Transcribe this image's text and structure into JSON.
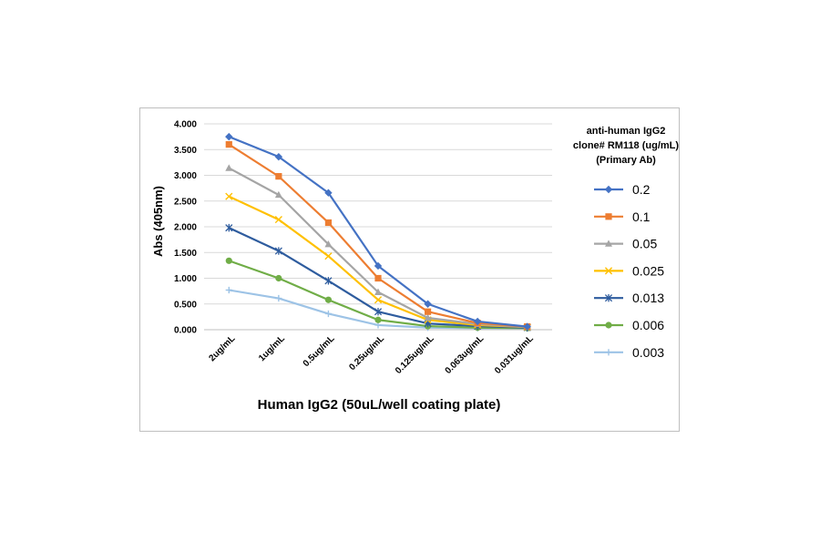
{
  "chart_data": {
    "type": "line",
    "title": "",
    "xlabel": "Human IgG2 (50uL/well coating plate)",
    "ylabel": "Abs (405nm)",
    "categories": [
      "2ug/mL",
      "1ug/mL",
      "0.5ug/mL",
      "0.25ug/mL",
      "0.125ug/mL",
      "0.063ug/mL",
      "0.031ug/mL"
    ],
    "ylim": [
      0,
      4
    ],
    "yticks": [
      "0.000",
      "0.500",
      "1.000",
      "1.500",
      "2.000",
      "2.500",
      "3.000",
      "3.500",
      "4.000"
    ],
    "grid": true,
    "legend_title_lines": [
      "anti-human IgG2",
      "clone# RM118 (ug/mL)",
      "(Primary Ab)"
    ],
    "legend_position": "right",
    "series": [
      {
        "name": "0.2",
        "color": "#4472C4",
        "marker": "diamond",
        "values": [
          3.75,
          3.36,
          2.66,
          1.24,
          0.5,
          0.16,
          0.06
        ]
      },
      {
        "name": "0.1",
        "color": "#ED7D31",
        "marker": "square",
        "values": [
          3.6,
          2.98,
          2.08,
          1.0,
          0.35,
          0.13,
          0.06
        ]
      },
      {
        "name": "0.05",
        "color": "#A5A5A5",
        "marker": "triangle",
        "values": [
          3.14,
          2.62,
          1.66,
          0.73,
          0.23,
          0.11,
          0.05
        ]
      },
      {
        "name": "0.025",
        "color": "#FFC000",
        "marker": "x",
        "values": [
          2.59,
          2.14,
          1.43,
          0.58,
          0.19,
          0.09,
          0.05
        ]
      },
      {
        "name": "0.013",
        "color": "#2E5C9E",
        "marker": "star",
        "values": [
          1.98,
          1.53,
          0.95,
          0.35,
          0.12,
          0.07,
          0.04
        ]
      },
      {
        "name": "0.006",
        "color": "#70AD47",
        "marker": "circle",
        "values": [
          1.34,
          1.0,
          0.58,
          0.19,
          0.07,
          0.04,
          0.03
        ]
      },
      {
        "name": "0.003",
        "color": "#9DC3E6",
        "marker": "plus",
        "values": [
          0.77,
          0.61,
          0.31,
          0.09,
          0.04,
          0.03,
          0.03
        ]
      }
    ]
  }
}
